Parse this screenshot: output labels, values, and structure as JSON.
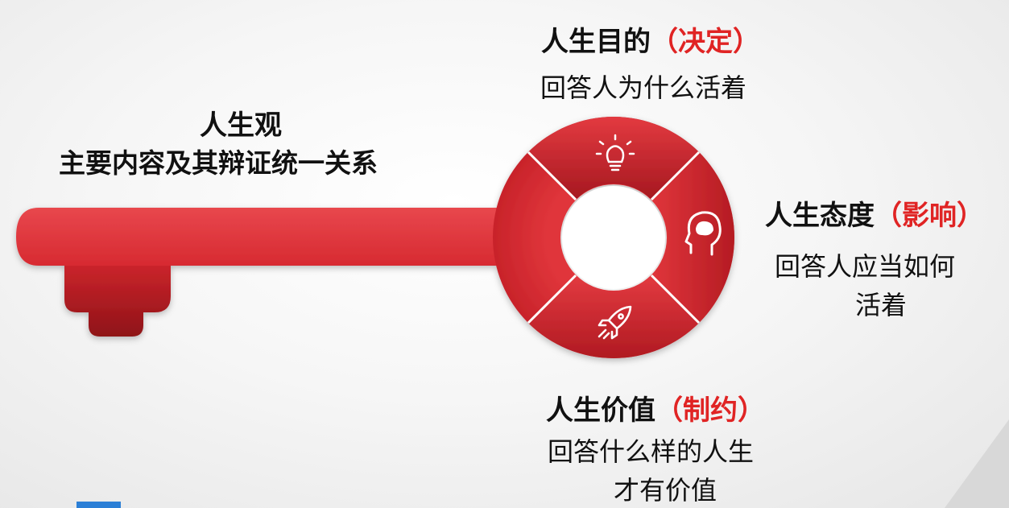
{
  "left": {
    "title": "人生观",
    "subtitle": "主要内容及其辩证统一关系"
  },
  "purpose": {
    "title": "人生目的",
    "role": "（决定）",
    "desc": "回答人为什么活着"
  },
  "attitude": {
    "title": "人生态度",
    "role": "（影响）",
    "desc_line1": "回答人应当如何",
    "desc_line2": "活着"
  },
  "value": {
    "title": "人生价值",
    "role": "（制约）",
    "desc_line1": "回答什么样的人生",
    "desc_line2": "才有价值"
  },
  "colors": {
    "key_red": "#e0353b",
    "key_dark": "#b3171e",
    "accent": "#e02424"
  },
  "icons": {
    "top_segment": "lightbulb-icon",
    "right_segment": "head-brain-icon",
    "bottom_segment": "rocket-icon"
  }
}
